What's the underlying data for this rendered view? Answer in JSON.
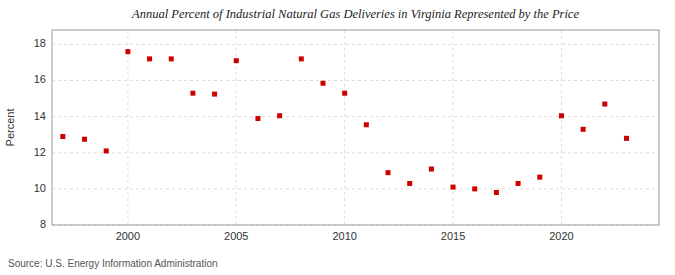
{
  "chart_data": {
    "type": "scatter",
    "title": "Annual Percent of Industrial Natural Gas Deliveries in Virginia Represented by the Price",
    "ylabel": "Percent",
    "annotations": [
      "Source: U.S. Energy Information Administration"
    ],
    "color": "#cc0000",
    "marker": "square",
    "grid": true,
    "xlim": [
      1996.5,
      2024.5
    ],
    "ylim": [
      8,
      18.8
    ],
    "xticks": [
      2000,
      2005,
      2010,
      2015,
      2020
    ],
    "yticks": [
      8,
      10,
      12,
      14,
      16,
      18
    ],
    "x": [
      1997,
      1998,
      1999,
      2000,
      2001,
      2002,
      2003,
      2004,
      2005,
      2006,
      2007,
      2008,
      2009,
      2010,
      2011,
      2012,
      2013,
      2014,
      2015,
      2016,
      2017,
      2018,
      2019,
      2020,
      2021,
      2022,
      2023
    ],
    "values": [
      12.9,
      12.75,
      12.1,
      17.6,
      17.2,
      17.2,
      15.3,
      15.25,
      17.1,
      13.9,
      14.05,
      17.2,
      15.85,
      15.3,
      13.55,
      10.9,
      10.3,
      11.1,
      10.1,
      10.0,
      9.8,
      10.3,
      10.65,
      14.05,
      13.3,
      14.7,
      12.8
    ]
  }
}
